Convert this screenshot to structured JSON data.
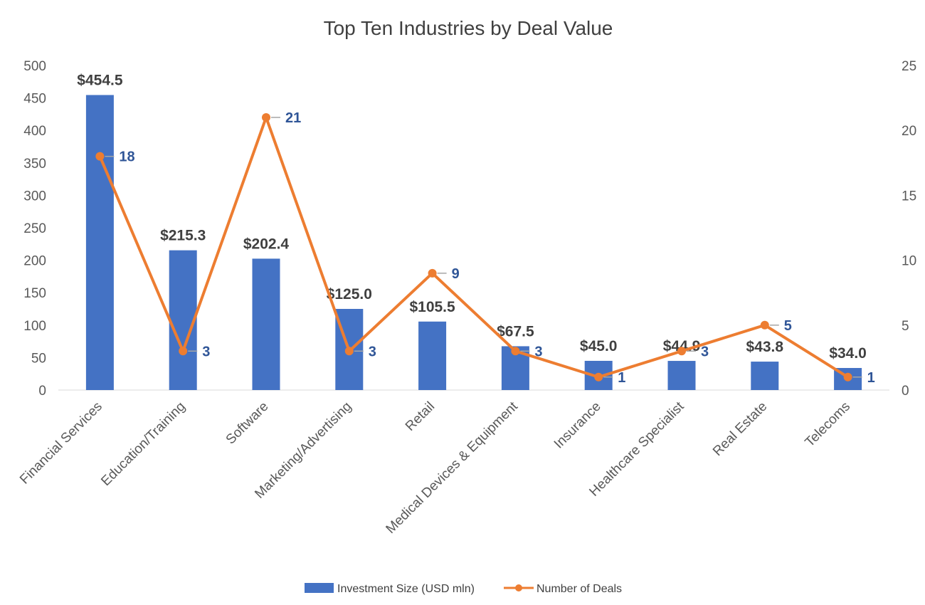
{
  "chart_data": {
    "type": "bar",
    "title": "Top Ten Industries by Deal Value",
    "categories": [
      "Financial Services",
      "Education/Training",
      "Software",
      "Marketing/Advertising",
      "Retail",
      "Medical Devices & Equipment",
      "Insurance",
      "Healthcare Specialist",
      "Real Estate",
      "Telecoms"
    ],
    "series": [
      {
        "name": "Investment Size (USD mln)",
        "type": "bar",
        "axis": "left",
        "color": "#4472C4",
        "values": [
          454.5,
          215.3,
          202.4,
          125.0,
          105.5,
          67.5,
          45.0,
          44.9,
          43.8,
          34.0
        ],
        "labels": [
          "$454.5",
          "$215.3",
          "$202.4",
          "$125.0",
          "$105.5",
          "$67.5",
          "$45.0",
          "$44.9",
          "$43.8",
          "$34.0"
        ]
      },
      {
        "name": "Number of Deals",
        "type": "line",
        "axis": "right",
        "color": "#ED7D31",
        "values": [
          18,
          3,
          21,
          3,
          9,
          3,
          1,
          3,
          5,
          1
        ],
        "labels": [
          "18",
          "3",
          "21",
          "3",
          "9",
          "3",
          "1",
          "3",
          "5",
          "1"
        ]
      }
    ],
    "y_left": {
      "ylim": [
        0,
        500
      ],
      "ticks": [
        "0",
        "50",
        "100",
        "150",
        "200",
        "250",
        "300",
        "350",
        "400",
        "450",
        "500"
      ]
    },
    "y_right": {
      "ylim": [
        0,
        25
      ],
      "ticks": [
        "0",
        "5",
        "10",
        "15",
        "20",
        "25"
      ]
    },
    "grid": false,
    "legend_position": "bottom"
  }
}
